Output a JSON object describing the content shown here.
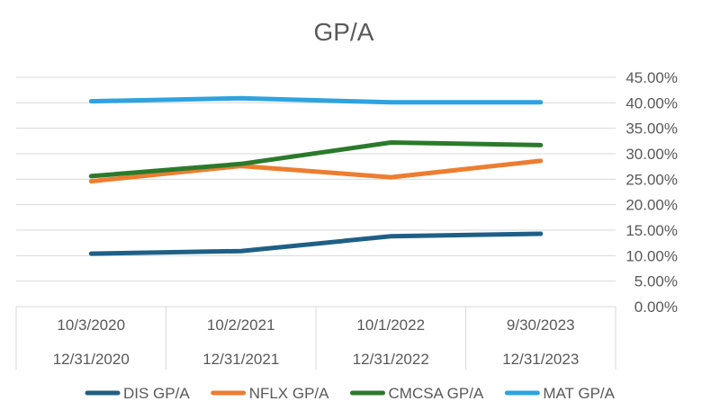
{
  "chart_data": {
    "type": "line",
    "title": "GP/A",
    "categories": [
      [
        "10/3/2020",
        "12/31/2020"
      ],
      [
        "10/2/2021",
        "12/31/2021"
      ],
      [
        "10/1/2022",
        "12/31/2022"
      ],
      [
        "9/30/2023",
        "12/31/2023"
      ]
    ],
    "ylim": [
      0,
      0.45
    ],
    "ytick_step": 0.05,
    "yticks": [
      "0.00%",
      "5.00%",
      "10.00%",
      "15.00%",
      "20.00%",
      "25.00%",
      "30.00%",
      "35.00%",
      "40.00%",
      "45.00%"
    ],
    "y_axis_position": "right",
    "grid": true,
    "legend_position": "bottom",
    "series": [
      {
        "name": "DIS GP/A",
        "color": "#1f5f86",
        "values": [
          0.104,
          0.109,
          0.138,
          0.143
        ]
      },
      {
        "name": "NFLX GP/A",
        "color": "#ed7d31",
        "values": [
          0.246,
          0.276,
          0.254,
          0.286
        ]
      },
      {
        "name": "CMCSA GP/A",
        "color": "#2b7a2b",
        "values": [
          0.256,
          0.28,
          0.322,
          0.317
        ]
      },
      {
        "name": "MAT GP/A",
        "color": "#2ea3e0",
        "values": [
          0.403,
          0.409,
          0.401,
          0.401
        ]
      }
    ]
  }
}
